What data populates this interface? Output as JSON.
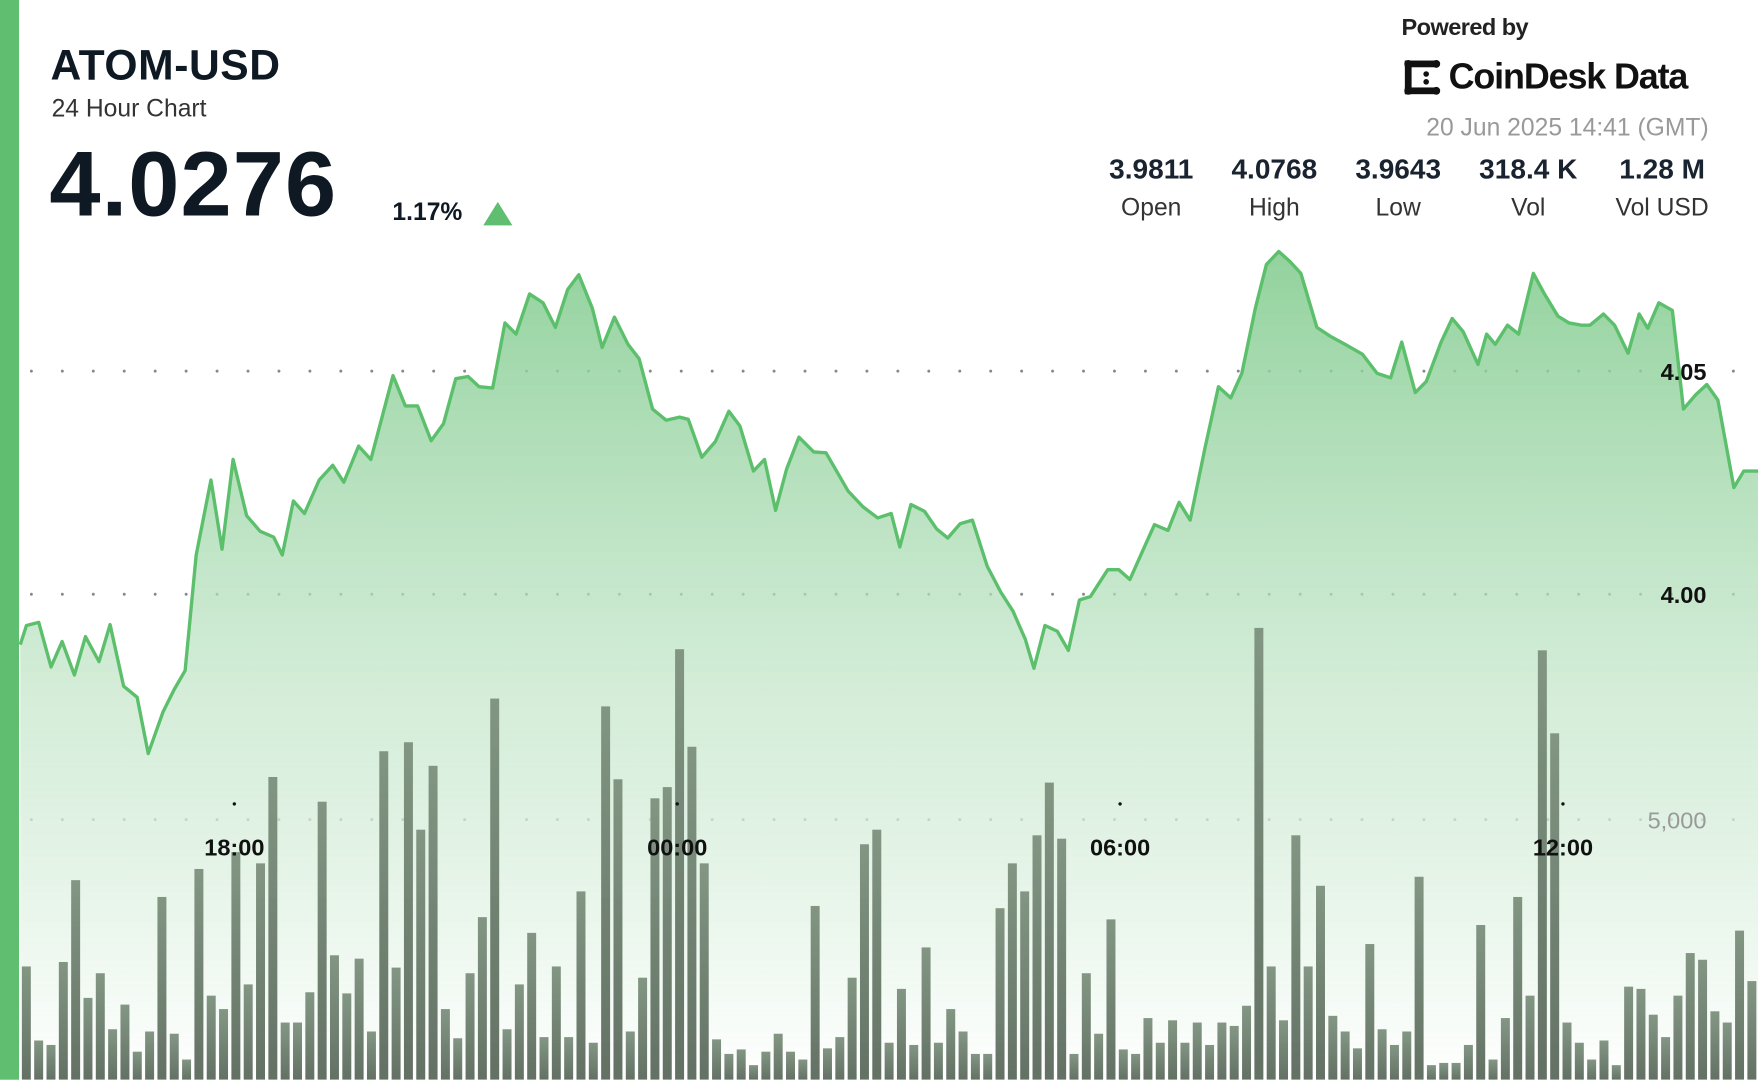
{
  "header": {
    "title": "ATOM-USD",
    "subtitle": "24 Hour Chart",
    "price": "4.0276",
    "change_pct": "1.17%",
    "change_direction": "up"
  },
  "branding": {
    "powered_by": "Powered by",
    "logo_text": "CoinDesk Data",
    "timestamp": "20 Jun 2025 14:41 (GMT)"
  },
  "stats": [
    {
      "value": "3.9811",
      "label": "Open"
    },
    {
      "value": "4.0768",
      "label": "High"
    },
    {
      "value": "3.9643",
      "label": "Low"
    },
    {
      "value": "318.4 K",
      "label": "Vol"
    },
    {
      "value": "1.28 M",
      "label": "Vol USD"
    }
  ],
  "colors": {
    "accent": "#5fbe6f",
    "line": "#5cbf6c",
    "volume": "#66766a",
    "text": "#0f1923"
  },
  "chart_data": {
    "type": "area",
    "grid": true,
    "price_ticks": [
      "4.05",
      "4.00"
    ],
    "volume_tick": "5,000",
    "x_ticks": [
      "18:00",
      "00:00",
      "06:00",
      "12:00"
    ],
    "price_series": [
      [
        "15:06",
        3.9887
      ],
      [
        "15:11",
        3.993
      ],
      [
        "15:21",
        3.9937
      ],
      [
        "15:31",
        3.9837
      ],
      [
        "15:40",
        3.9894
      ],
      [
        "15:50",
        3.9819
      ],
      [
        "15:59",
        3.9905
      ],
      [
        "16:10",
        3.9849
      ],
      [
        "16:19",
        3.9932
      ],
      [
        "16:30",
        3.9794
      ],
      [
        "16:41",
        3.9769
      ],
      [
        "16:50",
        3.9643
      ],
      [
        "17:02",
        3.9736
      ],
      [
        "17:11",
        3.9786
      ],
      [
        "17:20",
        3.9829
      ],
      [
        "17:29",
        4.0088
      ],
      [
        "17:41",
        4.0256
      ],
      [
        "17:50",
        4.0101
      ],
      [
        "17:59",
        4.0302
      ],
      [
        "18:10",
        4.0176
      ],
      [
        "18:21",
        4.0141
      ],
      [
        "18:32",
        4.0128
      ],
      [
        "18:39",
        4.0088
      ],
      [
        "18:48",
        4.0209
      ],
      [
        "18:57",
        4.0181
      ],
      [
        "19:09",
        4.0256
      ],
      [
        "19:20",
        4.0289
      ],
      [
        "19:29",
        4.0251
      ],
      [
        "19:41",
        4.0332
      ],
      [
        "19:51",
        4.0302
      ],
      [
        "20:09",
        4.049
      ],
      [
        "20:19",
        4.0422
      ],
      [
        "20:29",
        4.0422
      ],
      [
        "20:40",
        4.0344
      ],
      [
        "20:50",
        4.0382
      ],
      [
        "21:00",
        4.0483
      ],
      [
        "21:10",
        4.0488
      ],
      [
        "21:19",
        4.0465
      ],
      [
        "21:30",
        4.0462
      ],
      [
        "21:40",
        4.0608
      ],
      [
        "21:49",
        4.0583
      ],
      [
        "22:00",
        4.0673
      ],
      [
        "22:11",
        4.0653
      ],
      [
        "22:21",
        4.0598
      ],
      [
        "22:31",
        4.0683
      ],
      [
        "22:40",
        4.0716
      ],
      [
        "22:51",
        4.0641
      ],
      [
        "22:59",
        4.0553
      ],
      [
        "23:09",
        4.0621
      ],
      [
        "23:20",
        4.056
      ],
      [
        "23:29",
        4.0528
      ],
      [
        "23:40",
        4.0415
      ],
      [
        "23:51",
        4.039
      ],
      [
        "00:02",
        4.0397
      ],
      [
        "00:09",
        4.0392
      ],
      [
        "00:20",
        4.0307
      ],
      [
        "00:31",
        4.0342
      ],
      [
        "00:42",
        4.041
      ],
      [
        "00:51",
        4.0377
      ],
      [
        "01:02",
        4.0276
      ],
      [
        "01:11",
        4.0302
      ],
      [
        "01:20",
        4.0188
      ],
      [
        "01:29",
        4.0281
      ],
      [
        "01:39",
        4.0352
      ],
      [
        "01:51",
        4.0319
      ],
      [
        "02:01",
        4.0317
      ],
      [
        "02:19",
        4.0231
      ],
      [
        "02:31",
        4.0196
      ],
      [
        "02:43",
        4.0171
      ],
      [
        "02:54",
        4.0181
      ],
      [
        "03:01",
        4.0106
      ],
      [
        "03:10",
        4.0201
      ],
      [
        "03:21",
        4.0186
      ],
      [
        "03:31",
        4.0146
      ],
      [
        "03:40",
        4.0126
      ],
      [
        "03:50",
        4.0158
      ],
      [
        "04:00",
        4.0166
      ],
      [
        "04:12",
        4.0063
      ],
      [
        "04:23",
        4.0005
      ],
      [
        "04:33",
        3.9962
      ],
      [
        "04:43",
        3.9899
      ],
      [
        "04:50",
        3.9834
      ],
      [
        "04:59",
        3.993
      ],
      [
        "05:09",
        3.9917
      ],
      [
        "05:18",
        3.9874
      ],
      [
        "05:27",
        3.9987
      ],
      [
        "05:36",
        3.9995
      ],
      [
        "05:50",
        4.0055
      ],
      [
        "05:59",
        4.0055
      ],
      [
        "06:08",
        4.0033
      ],
      [
        "06:19",
        4.0101
      ],
      [
        "06:28",
        4.0156
      ],
      [
        "06:39",
        4.0143
      ],
      [
        "06:48",
        4.0206
      ],
      [
        "06:57",
        4.0166
      ],
      [
        "07:09",
        4.0327
      ],
      [
        "07:20",
        4.0465
      ],
      [
        "07:30",
        4.044
      ],
      [
        "07:39",
        4.0495
      ],
      [
        "07:50",
        4.0641
      ],
      [
        "07:59",
        4.0739
      ],
      [
        "08:09",
        4.0768
      ],
      [
        "08:18",
        4.0746
      ],
      [
        "08:27",
        4.0719
      ],
      [
        "08:40",
        4.0598
      ],
      [
        "08:51",
        4.0578
      ],
      [
        "09:03",
        4.056
      ],
      [
        "09:17",
        4.0538
      ],
      [
        "09:29",
        4.0495
      ],
      [
        "09:40",
        4.0485
      ],
      [
        "09:49",
        4.0565
      ],
      [
        "10:00",
        4.0452
      ],
      [
        "10:09",
        4.0477
      ],
      [
        "10:21",
        4.0565
      ],
      [
        "10:30",
        4.0618
      ],
      [
        "10:39",
        4.0588
      ],
      [
        "10:51",
        4.0515
      ],
      [
        "10:58",
        4.0583
      ],
      [
        "11:05",
        4.056
      ],
      [
        "11:15",
        4.0603
      ],
      [
        "11:24",
        4.0583
      ],
      [
        "11:36",
        4.0719
      ],
      [
        "11:45",
        4.0673
      ],
      [
        "11:56",
        4.0623
      ],
      [
        "12:05",
        4.0608
      ],
      [
        "12:15",
        4.0603
      ],
      [
        "12:22",
        4.0603
      ],
      [
        "12:33",
        4.0628
      ],
      [
        "12:42",
        4.0603
      ],
      [
        "12:53",
        4.054
      ],
      [
        "13:02",
        4.0628
      ],
      [
        "13:09",
        4.0596
      ],
      [
        "13:18",
        4.0653
      ],
      [
        "13:29",
        4.0636
      ],
      [
        "13:38",
        4.0415
      ],
      [
        "13:48",
        4.0447
      ],
      [
        "13:57",
        4.047
      ],
      [
        "14:06",
        4.0435
      ],
      [
        "14:19",
        4.0239
      ],
      [
        "14:27",
        4.0276
      ],
      [
        "14:39",
        4.0276
      ]
    ],
    "volume_values": [
      2177,
      754,
      668,
      2263,
      3836,
      1573,
      2047,
      970,
      1444,
      539,
      927,
      3513,
      884,
      388,
      4051,
      1616,
      1358,
      4375,
      1832,
      4159,
      5819,
      1099,
      1099,
      1681,
      5344,
      2392,
      1659,
      2327,
      927,
      6314,
      2155,
      6487,
      4806,
      6034,
      1358,
      797,
      2047,
      3125,
      7327,
      970,
      1832,
      2823,
      819,
      2177,
      819,
      3620,
      711,
      7176,
      5775,
      927,
      1961,
      5409,
      5625,
      8275,
      6400,
      4159,
      776,
      496,
      582,
      280,
      539,
      884,
      539,
      388,
      3340,
      603,
      819,
      1961,
      4526,
      4806,
      711,
      1746,
      668,
      2543,
      711,
      1358,
      927,
      496,
      496,
      3297,
      4159,
      3620,
      4698,
      5711,
      4633,
      496,
      2047,
      884,
      3082,
      582,
      496,
      1185,
      711,
      1142,
      711,
      1099,
      668,
      1099,
      1034,
      1422,
      8685,
      2177,
      1142,
      4698,
      2177,
      3728,
      1228,
      927,
      603,
      2608,
      970,
      668,
      927,
      3901,
      280,
      323,
      323,
      668,
      2974,
      388,
      1185,
      3513,
      1616,
      8254,
      6659,
      1099,
      711,
      388,
      754,
      280,
      1789,
      1746,
      1250,
      819,
      1616,
      2435,
      2306,
      1315,
      1099,
      2866,
      1896
    ]
  }
}
